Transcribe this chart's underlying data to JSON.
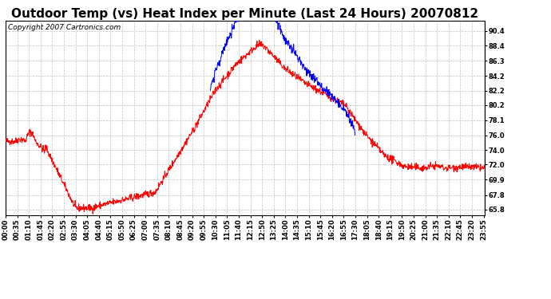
{
  "title": "Outdoor Temp (vs) Heat Index per Minute (Last 24 Hours) 20070812",
  "copyright_text": "Copyright 2007 Cartronics.com",
  "bg_color": "#ffffff",
  "plot_bg_color": "#ffffff",
  "grid_color": "#bbbbbb",
  "red_color": "#ff0000",
  "blue_color": "#0000ff",
  "yticks": [
    65.8,
    67.8,
    69.9,
    72.0,
    74.0,
    76.0,
    78.1,
    80.2,
    82.2,
    84.2,
    86.3,
    88.4,
    90.4
  ],
  "ylim": [
    65.0,
    91.8
  ],
  "title_fontsize": 11,
  "copyright_fontsize": 6.5,
  "tick_fontsize": 6,
  "num_minutes": 1440
}
